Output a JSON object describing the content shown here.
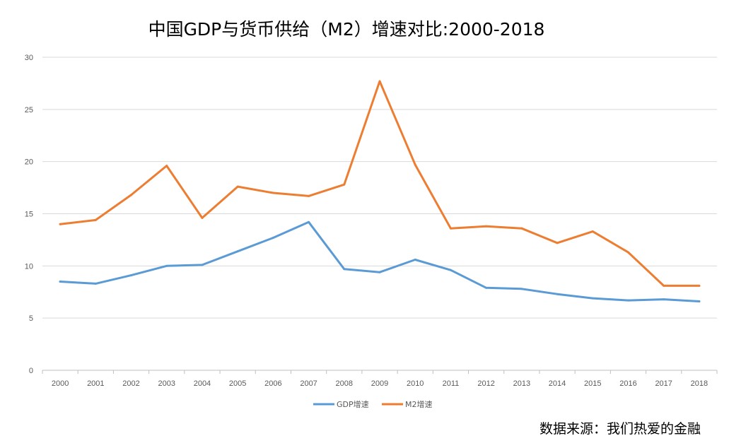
{
  "chart_data": {
    "type": "line",
    "title": "中国GDP与货币供给（M2）增速对比:2000-2018",
    "xlabel": "",
    "ylabel": "",
    "x": [
      "2000",
      "2001",
      "2002",
      "2003",
      "2004",
      "2005",
      "2006",
      "2007",
      "2008",
      "2009",
      "2010",
      "2011",
      "2012",
      "2013",
      "2014",
      "2015",
      "2016",
      "2017",
      "2018"
    ],
    "ylim": [
      0,
      30
    ],
    "yticks": [
      0,
      5,
      10,
      15,
      20,
      25,
      30
    ],
    "grid": true,
    "legend": "bottom",
    "series": [
      {
        "name": "GDP增速",
        "color": "#5B9BD5",
        "values": [
          8.5,
          8.3,
          9.1,
          10.0,
          10.1,
          11.4,
          12.7,
          14.2,
          9.7,
          9.4,
          10.6,
          9.6,
          7.9,
          7.8,
          7.3,
          6.9,
          6.7,
          6.8,
          6.6
        ]
      },
      {
        "name": "M2增速",
        "color": "#ED7D31",
        "values": [
          14.0,
          14.4,
          16.8,
          19.6,
          14.6,
          17.6,
          17.0,
          16.7,
          17.8,
          27.7,
          19.7,
          13.6,
          13.8,
          13.6,
          12.2,
          13.3,
          11.3,
          8.1,
          8.1
        ]
      }
    ]
  },
  "source": "数据来源：我们热爱的金融"
}
